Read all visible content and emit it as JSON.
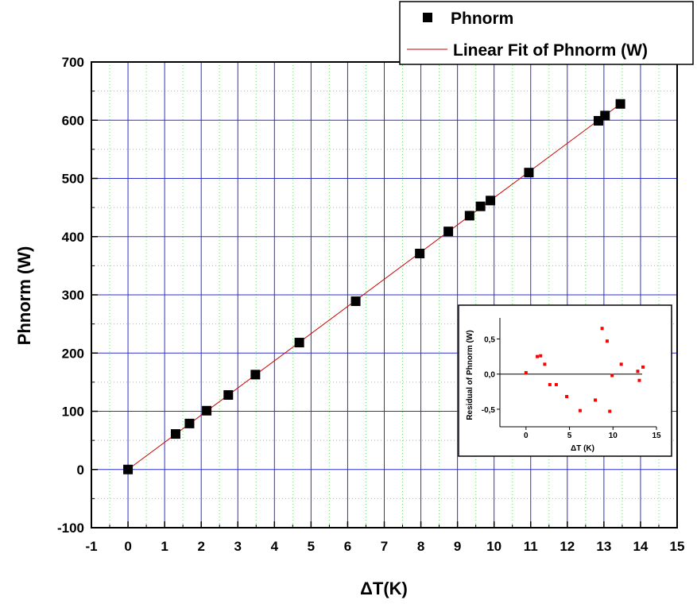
{
  "chart_data": [
    {
      "type": "scatter",
      "xlabel": "ΔT(K)",
      "ylabel": "Phnorm (W)",
      "xlim": [
        -1,
        15
      ],
      "ylim": [
        -100,
        700
      ],
      "xticks": [
        "-1",
        "0",
        "1",
        "2",
        "3",
        "4",
        "5",
        "6",
        "7",
        "8",
        "9",
        "10",
        "11",
        "12",
        "13",
        "14",
        "15"
      ],
      "yticks": [
        "-100",
        "0",
        "100",
        "200",
        "300",
        "400",
        "500",
        "600",
        "700"
      ],
      "grid": true,
      "legend_position": "top-right",
      "series": [
        {
          "name": "Phnorm",
          "marker": "square",
          "color": "#000000",
          "x": [
            0,
            1.3,
            1.68,
            2.15,
            2.74,
            3.48,
            4.68,
            6.22,
            7.97,
            8.75,
            9.33,
            9.63,
            9.9,
            10.95,
            12.85,
            13.03,
            13.45
          ],
          "y": [
            0,
            61,
            79,
            101,
            128,
            163,
            218,
            289,
            371,
            409,
            436,
            452,
            462,
            510,
            599,
            608,
            628
          ]
        },
        {
          "name": "Linear Fit of Phnorm (W)",
          "type": "line",
          "color": "#cc0000",
          "x": [
            0,
            13.45
          ],
          "y": [
            0,
            628
          ]
        }
      ]
    },
    {
      "type": "scatter",
      "xlabel": "ΔT (K)",
      "ylabel": "Residual of Phnorm (W)",
      "xlim": [
        -3,
        15
      ],
      "ylim": [
        -0.75,
        0.8
      ],
      "xticks": [
        "0",
        "5",
        "10",
        "15"
      ],
      "yticks": [
        "-0,5",
        "0,0",
        "0,5"
      ],
      "zero_line": true,
      "series": [
        {
          "color": "#ff0000",
          "marker": "square",
          "x": [
            0,
            1.3,
            1.68,
            2.15,
            2.74,
            3.48,
            4.68,
            6.22,
            7.97,
            8.75,
            9.33,
            9.63,
            9.9,
            10.95,
            12.85,
            13.03,
            13.45
          ],
          "y": [
            0.02,
            0.25,
            0.26,
            0.14,
            -0.15,
            -0.15,
            -0.32,
            -0.52,
            -0.37,
            0.65,
            0.47,
            -0.53,
            -0.02,
            0.14,
            0.04,
            -0.09,
            0.1
          ]
        }
      ]
    }
  ]
}
